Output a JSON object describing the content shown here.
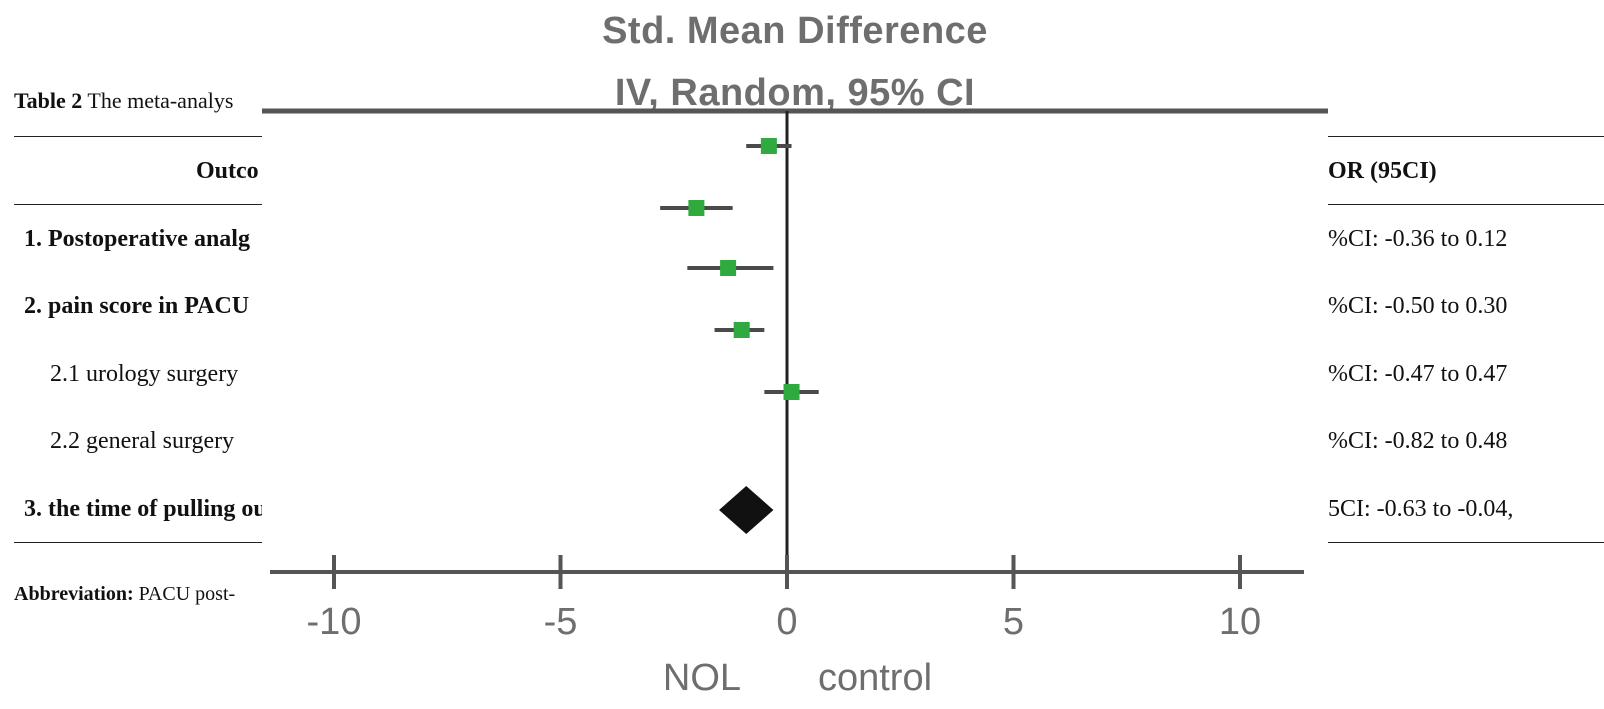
{
  "table": {
    "caption_bold": "Table 2",
    "caption_rest": "The meta-analys",
    "header_left": "Outco",
    "header_right": "OR (95CI)",
    "rows": [
      {
        "left": "1. Postoperative analg",
        "right": "%CI: -0.36 to 0.12"
      },
      {
        "left": "2. pain score in PACU",
        "right": "%CI: -0.50 to 0.30"
      },
      {
        "left": "2.1 urology surgery",
        "right": "%CI: -0.47 to 0.47"
      },
      {
        "left": "2.2 general surgery",
        "right": "%CI: -0.82 to 0.48"
      },
      {
        "left": "3. the time of pulling ou",
        "right": "5CI: -0.63 to -0.04,"
      }
    ],
    "footnote_bold": "Abbreviation:",
    "footnote_rest": "PACU post-"
  },
  "chart_data": {
    "type": "forest",
    "title": "Std. Mean Difference",
    "subtitle": "IV, Random, 95% CI",
    "xlim": [
      -10,
      10
    ],
    "x_ticks": [
      -10,
      -5,
      0,
      5,
      10
    ],
    "footer_left": "NOL",
    "footer_right": "control",
    "studies": [
      {
        "estimate": -0.4,
        "lower": -0.9,
        "upper": 0.1
      },
      {
        "estimate": -2.0,
        "lower": -2.8,
        "upper": -1.2
      },
      {
        "estimate": -1.3,
        "lower": -2.2,
        "upper": -0.3
      },
      {
        "estimate": -1.0,
        "lower": -1.6,
        "upper": -0.5
      },
      {
        "estimate": 0.1,
        "lower": -0.5,
        "upper": 0.7
      }
    ],
    "pooled": {
      "estimate": -0.9,
      "lower": -1.5,
      "upper": -0.3
    },
    "colors": {
      "study_marker": "#2eaa3f",
      "ci_line": "#4a4a4a",
      "pooled_marker": "#111111",
      "axis": "#555555"
    }
  }
}
